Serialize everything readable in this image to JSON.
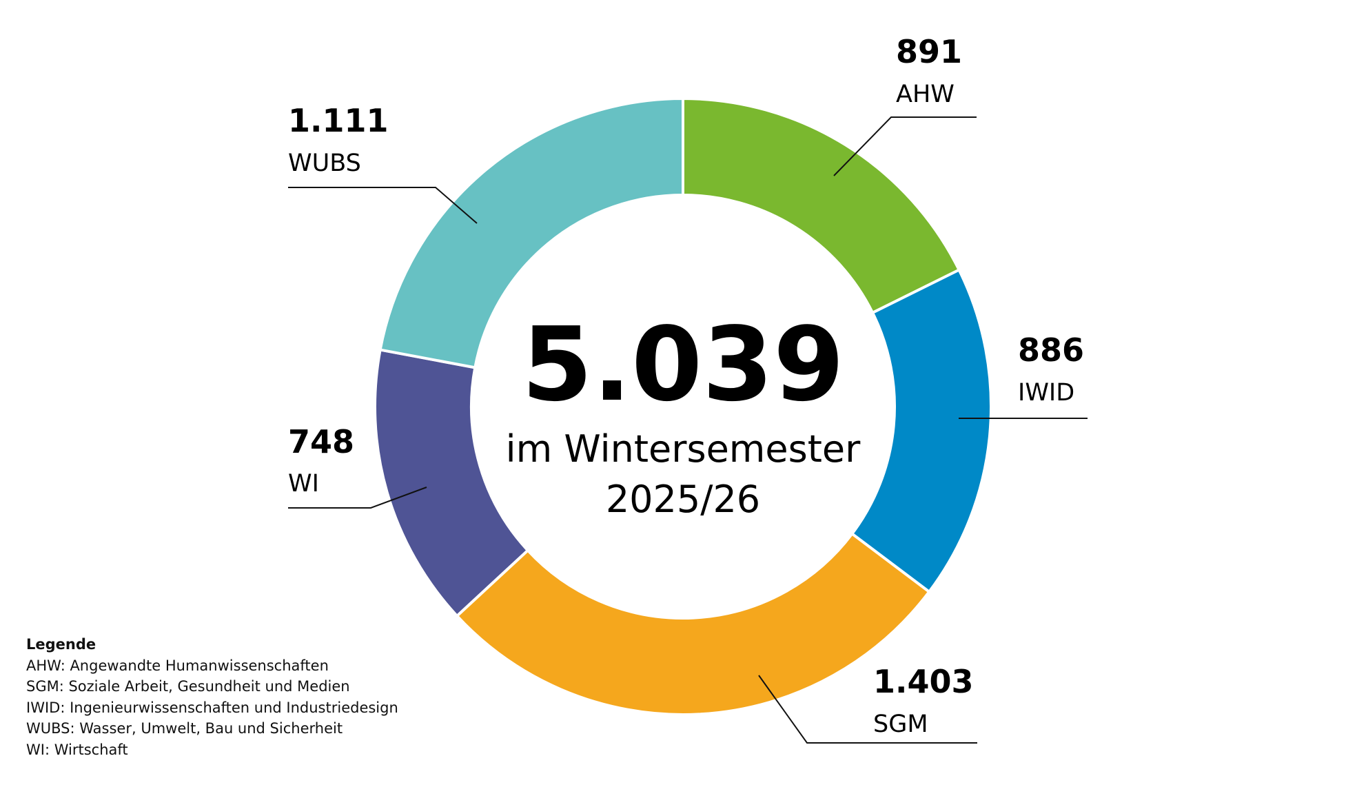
{
  "chart_data": {
    "type": "pie",
    "variant": "donut",
    "center": {
      "total": "5.039",
      "line1": "im Wintersemester",
      "line2": "2025/26"
    },
    "slices": [
      {
        "label": "AHW",
        "value": 891,
        "value_label": "891",
        "color": "#7ab82f"
      },
      {
        "label": "IWID",
        "value": 886,
        "value_label": "886",
        "color": "#0089c7"
      },
      {
        "label": "SGM",
        "value": 1403,
        "value_label": "1.403",
        "color": "#f5a71d"
      },
      {
        "label": "WI",
        "value": 748,
        "value_label": "748",
        "color": "#4f5495"
      },
      {
        "label": "WUBS",
        "value": 1111,
        "value_label": "1.111",
        "color": "#67c1c3"
      }
    ],
    "legend": {
      "title": "Legende",
      "items": [
        "AHW: Angewandte Humanwissenschaften",
        "SGM: Soziale Arbeit, Gesundheit und Medien",
        "IWID: Ingenieurwissenschaften und Industriedesign",
        "WUBS: Wasser, Umwelt, Bau und Sicherheit",
        "WI: Wirtschaft"
      ]
    }
  }
}
